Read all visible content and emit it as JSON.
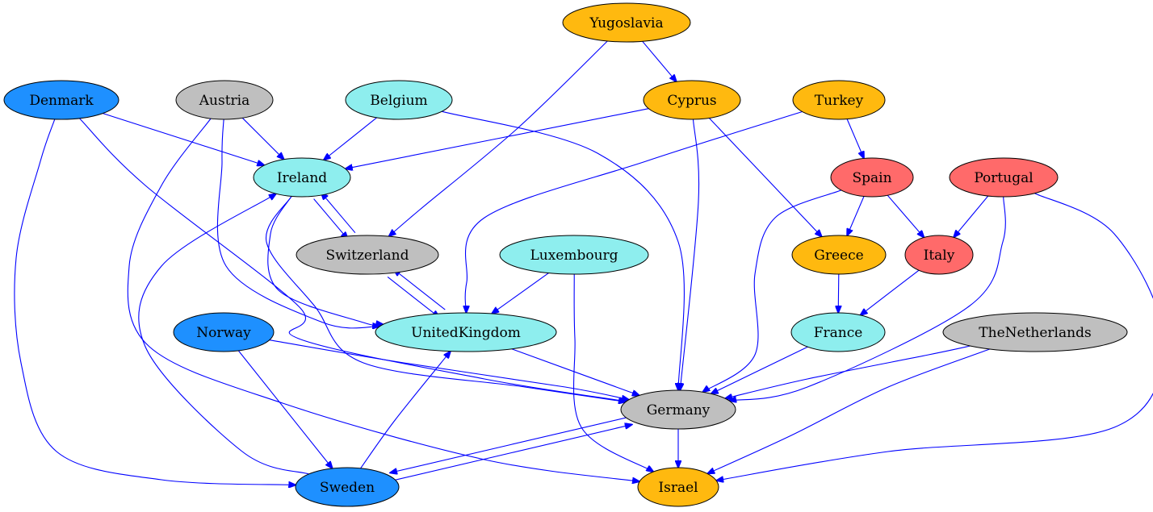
{
  "graph": {
    "colors": {
      "edge": "#0000ff",
      "orange": "#ffb90f",
      "cyan": "#8eeeee",
      "gray": "#bfbfbf",
      "blue": "#1e90ff",
      "red": "#ff6a6a"
    },
    "nodes": [
      {
        "id": "Yugoslavia",
        "label": "Yugoslavia",
        "color": "orange"
      },
      {
        "id": "Denmark",
        "label": "Denmark",
        "color": "blue"
      },
      {
        "id": "Austria",
        "label": "Austria",
        "color": "gray"
      },
      {
        "id": "Belgium",
        "label": "Belgium",
        "color": "cyan"
      },
      {
        "id": "Cyprus",
        "label": "Cyprus",
        "color": "orange"
      },
      {
        "id": "Turkey",
        "label": "Turkey",
        "color": "orange"
      },
      {
        "id": "Ireland",
        "label": "Ireland",
        "color": "cyan"
      },
      {
        "id": "Spain",
        "label": "Spain",
        "color": "red"
      },
      {
        "id": "Portugal",
        "label": "Portugal",
        "color": "red"
      },
      {
        "id": "Switzerland",
        "label": "Switzerland",
        "color": "gray"
      },
      {
        "id": "Luxembourg",
        "label": "Luxembourg",
        "color": "cyan"
      },
      {
        "id": "Greece",
        "label": "Greece",
        "color": "orange"
      },
      {
        "id": "Italy",
        "label": "Italy",
        "color": "red"
      },
      {
        "id": "Norway",
        "label": "Norway",
        "color": "blue"
      },
      {
        "id": "UnitedKingdom",
        "label": "UnitedKingdom",
        "color": "cyan"
      },
      {
        "id": "France",
        "label": "France",
        "color": "cyan"
      },
      {
        "id": "TheNetherlands",
        "label": "TheNetherlands",
        "color": "gray"
      },
      {
        "id": "Germany",
        "label": "Germany",
        "color": "gray"
      },
      {
        "id": "Sweden",
        "label": "Sweden",
        "color": "blue"
      },
      {
        "id": "Israel",
        "label": "Israel",
        "color": "orange"
      }
    ],
    "edges": [
      {
        "from": "Yugoslavia",
        "to": "Switzerland"
      },
      {
        "from": "Yugoslavia",
        "to": "Cyprus"
      },
      {
        "from": "Denmark",
        "to": "Ireland"
      },
      {
        "from": "Denmark",
        "to": "Germany"
      },
      {
        "from": "Denmark",
        "to": "Sweden"
      },
      {
        "from": "Austria",
        "to": "Ireland"
      },
      {
        "from": "Austria",
        "to": "UnitedKingdom"
      },
      {
        "from": "Austria",
        "to": "Israel"
      },
      {
        "from": "Belgium",
        "to": "Ireland"
      },
      {
        "from": "Belgium",
        "to": "Germany"
      },
      {
        "from": "Cyprus",
        "to": "Ireland"
      },
      {
        "from": "Cyprus",
        "to": "Germany"
      },
      {
        "from": "Cyprus",
        "to": "Greece"
      },
      {
        "from": "Turkey",
        "to": "UnitedKingdom"
      },
      {
        "from": "Turkey",
        "to": "Spain"
      },
      {
        "from": "Ireland",
        "to": "Switzerland"
      },
      {
        "from": "Ireland",
        "to": "UnitedKingdom"
      },
      {
        "from": "Ireland",
        "to": "Germany"
      },
      {
        "from": "Switzerland",
        "to": "Ireland"
      },
      {
        "from": "Switzerland",
        "to": "UnitedKingdom"
      },
      {
        "from": "UnitedKingdom",
        "to": "Switzerland"
      },
      {
        "from": "UnitedKingdom",
        "to": "Germany"
      },
      {
        "from": "Spain",
        "to": "Greece"
      },
      {
        "from": "Spain",
        "to": "Italy"
      },
      {
        "from": "Spain",
        "to": "Germany"
      },
      {
        "from": "Portugal",
        "to": "Italy"
      },
      {
        "from": "Portugal",
        "to": "Germany"
      },
      {
        "from": "Portugal",
        "to": "Israel"
      },
      {
        "from": "Luxembourg",
        "to": "UnitedKingdom"
      },
      {
        "from": "Luxembourg",
        "to": "Israel"
      },
      {
        "from": "Greece",
        "to": "France"
      },
      {
        "from": "Italy",
        "to": "France"
      },
      {
        "from": "France",
        "to": "Germany"
      },
      {
        "from": "Norway",
        "to": "Germany"
      },
      {
        "from": "Norway",
        "to": "Sweden"
      },
      {
        "from": "TheNetherlands",
        "to": "Germany"
      },
      {
        "from": "TheNetherlands",
        "to": "Israel"
      },
      {
        "from": "Germany",
        "to": "Israel"
      },
      {
        "from": "Germany",
        "to": "Sweden"
      },
      {
        "from": "Sweden",
        "to": "Germany"
      },
      {
        "from": "Sweden",
        "to": "UnitedKingdom"
      },
      {
        "from": "Sweden",
        "to": "Ireland"
      }
    ]
  }
}
